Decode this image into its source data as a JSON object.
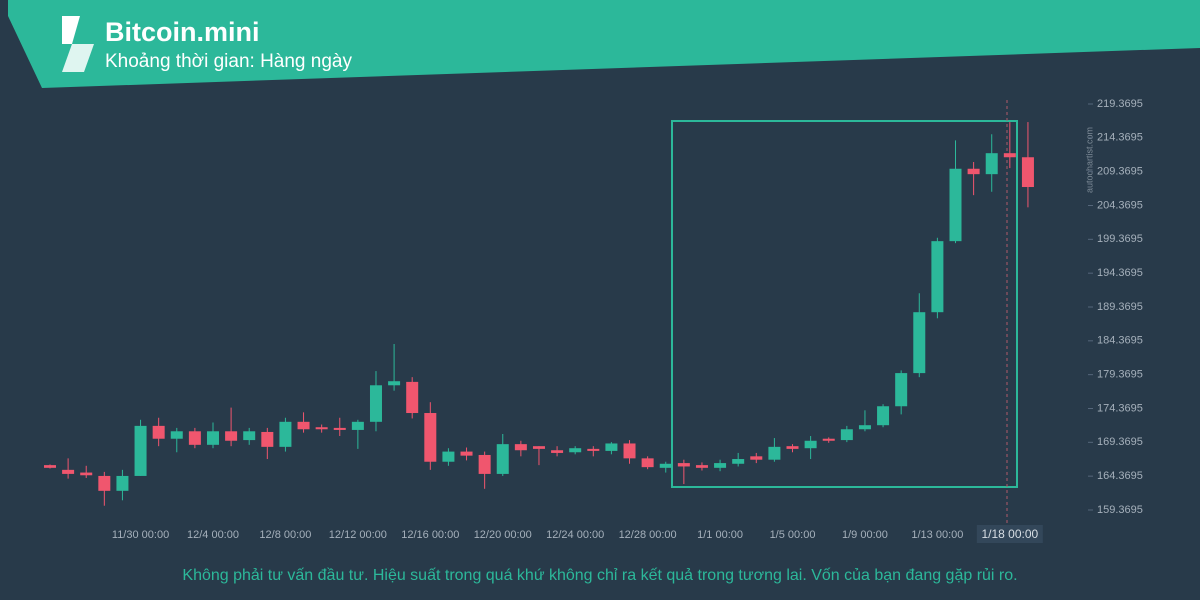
{
  "chart_data": {
    "type": "candlestick",
    "title": "Bitcoin.mini",
    "subtitle": "Khoảng thời gian: Hàng ngày",
    "watermark": "autochartist.com",
    "disclaimer": "Không phải tư vấn đầu tư. Hiệu suất trong quá khứ không chỉ ra kết quả trong tương lai. Vốn của bạn đang gặp rủi ro.",
    "categories": [
      null,
      null,
      null,
      null,
      null,
      "11/30 00:00",
      null,
      null,
      null,
      "12/4 00:00",
      null,
      null,
      null,
      "12/8 00:00",
      null,
      null,
      null,
      "12/12 00:00",
      null,
      null,
      null,
      "12/16 00:00",
      null,
      null,
      null,
      "12/20 00:00",
      null,
      null,
      null,
      "12/24 00:00",
      null,
      null,
      null,
      "12/28 00:00",
      null,
      null,
      null,
      "1/1 00:00",
      null,
      null,
      null,
      "1/5 00:00",
      null,
      null,
      null,
      "1/9 00:00",
      null,
      null,
      null,
      "1/13 00:00",
      null,
      null,
      null,
      "1/18 00:00",
      null
    ],
    "open": [
      166.0,
      165.3,
      164.9,
      164.4,
      162.2,
      164.4,
      171.8,
      169.9,
      171.0,
      169.0,
      171.0,
      169.7,
      170.9,
      168.7,
      172.4,
      171.6,
      171.5,
      171.2,
      172.4,
      177.8,
      178.3,
      173.7,
      166.5,
      168.0,
      167.5,
      164.7,
      169.1,
      168.8,
      168.2,
      167.9,
      168.4,
      168.1,
      169.2,
      167.0,
      165.6,
      166.3,
      166.0,
      165.6,
      166.2,
      167.3,
      166.8,
      168.8,
      168.5,
      169.9,
      169.7,
      171.3,
      171.9,
      174.7,
      179.6,
      188.6,
      199.1,
      209.8,
      209.0,
      212.1,
      211.5
    ],
    "high": [
      166.1,
      167.0,
      165.9,
      165.0,
      165.3,
      172.7,
      173.0,
      171.5,
      171.5,
      172.3,
      174.5,
      171.5,
      171.5,
      173.0,
      173.8,
      172.0,
      173.0,
      172.7,
      179.9,
      183.9,
      179.0,
      175.3,
      168.5,
      168.6,
      168.0,
      170.6,
      169.6,
      168.8,
      168.8,
      168.8,
      168.8,
      169.4,
      169.7,
      167.3,
      166.5,
      166.8,
      166.4,
      166.8,
      167.8,
      167.8,
      170.0,
      169.1,
      170.3,
      170.1,
      171.8,
      174.1,
      175.0,
      180.0,
      191.4,
      199.6,
      214.0,
      210.8,
      214.9,
      216.7,
      216.7
    ],
    "low": [
      165.5,
      164.0,
      164.1,
      160.0,
      160.8,
      164.4,
      168.8,
      167.9,
      168.5,
      168.5,
      168.8,
      169.0,
      166.9,
      168.0,
      170.8,
      170.8,
      170.3,
      168.4,
      171.0,
      177.0,
      172.9,
      165.3,
      165.9,
      166.7,
      162.5,
      164.4,
      167.3,
      166.0,
      167.3,
      167.6,
      167.3,
      167.6,
      166.2,
      165.4,
      164.9,
      163.2,
      165.2,
      165.1,
      165.8,
      166.3,
      166.5,
      167.9,
      166.9,
      169.3,
      169.4,
      171.0,
      171.6,
      173.5,
      179.0,
      187.7,
      198.8,
      205.9,
      206.4,
      209.9,
      204.1
    ],
    "close": [
      165.6,
      164.7,
      164.5,
      162.2,
      164.4,
      171.8,
      169.9,
      171.0,
      169.0,
      171.0,
      169.6,
      171.0,
      168.7,
      172.4,
      171.3,
      171.3,
      171.2,
      172.4,
      177.8,
      178.4,
      173.7,
      166.5,
      168.0,
      167.4,
      164.7,
      169.1,
      168.2,
      168.4,
      167.8,
      168.5,
      168.1,
      169.2,
      167.0,
      165.7,
      166.2,
      165.8,
      165.6,
      166.3,
      166.9,
      166.8,
      168.7,
      168.4,
      169.6,
      169.6,
      171.3,
      171.9,
      174.7,
      179.6,
      188.6,
      199.1,
      209.8,
      209.0,
      212.1,
      211.5,
      207.1
    ],
    "up_color": "#2cb89a",
    "down_color": "#f0566e",
    "ylim": [
      157.15,
      220.7
    ],
    "yticks": [
      159.3695,
      164.3695,
      169.3695,
      174.3695,
      179.3695,
      184.3695,
      189.3695,
      194.3695,
      199.3695,
      204.3695,
      209.3695,
      214.3695,
      219.3695
    ]
  }
}
